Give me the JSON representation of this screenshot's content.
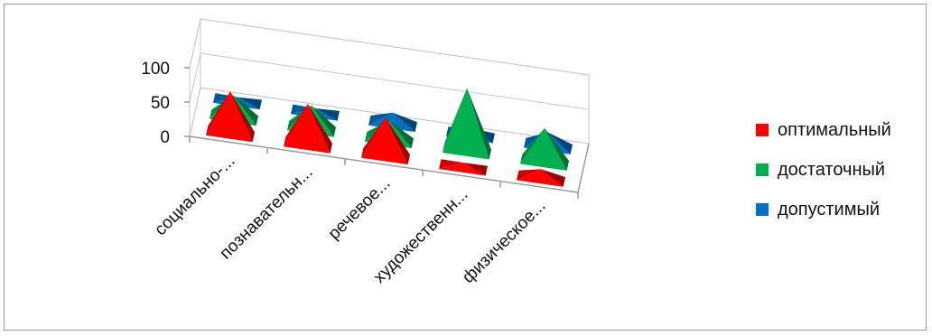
{
  "chart_data": {
    "type": "bar",
    "subtype": "3d-pyramid",
    "title": "",
    "xlabel": "",
    "ylabel": "",
    "ylim": [
      0,
      100
    ],
    "yticks": [
      0,
      50,
      100
    ],
    "categories": [
      "социально-...",
      "познавательн...",
      "речевое...",
      "художественн...",
      "физическое..."
    ],
    "series": [
      {
        "name": "оптимальный",
        "color": "#ff0000",
        "values": [
          62,
          60,
          56,
          7,
          14
        ]
      },
      {
        "name": "достаточный",
        "color": "#00b050",
        "values": [
          32,
          34,
          28,
          92,
          50
        ]
      },
      {
        "name": "допустимый",
        "color": "#0070c0",
        "values": [
          6,
          6,
          16,
          10,
          20
        ]
      }
    ],
    "grid": true,
    "legend_position": "right"
  }
}
